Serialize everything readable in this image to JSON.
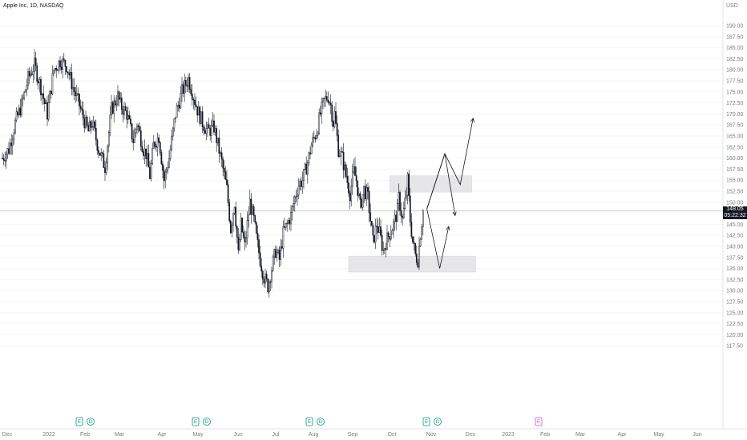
{
  "header": {
    "title": "Apple Inc, 1D, NASDAQ",
    "currency": "USD"
  },
  "price_tag": {
    "price": "148.05",
    "countdown": "05:22:32"
  },
  "colors": {
    "candle": "#131722",
    "zone": "#e6e6e8",
    "grid": "#f0f3fa",
    "axis_text": "#787b86",
    "price_line": "#c8c9cc"
  },
  "chart_data": {
    "type": "candlestick",
    "title": "Apple Inc, 1D, NASDAQ",
    "ylim": [
      117.5,
      192.5
    ],
    "y_ticks": [
      "190.00",
      "187.50",
      "185.00",
      "182.50",
      "180.00",
      "177.50",
      "175.00",
      "172.50",
      "170.00",
      "167.50",
      "165.00",
      "162.50",
      "160.00",
      "157.50",
      "155.00",
      "152.50",
      "150.00",
      "147.50",
      "145.00",
      "142.50",
      "140.00",
      "137.50",
      "135.00",
      "132.50",
      "130.00",
      "127.50",
      "125.00",
      "122.50",
      "120.00",
      "117.50"
    ],
    "x_ticks": [
      "Dec",
      "2022",
      "Feb",
      "Mar",
      "Apr",
      "May",
      "Jun",
      "Jul",
      "Aug",
      "Sep",
      "Oct",
      "Nov",
      "Dec",
      "2023",
      "Feb",
      "Mar",
      "Apr",
      "May",
      "Jun"
    ],
    "path_anchors": [
      [
        0,
        160
      ],
      [
        5,
        162
      ],
      [
        10,
        168
      ],
      [
        15,
        172
      ],
      [
        20,
        178
      ],
      [
        25,
        181
      ],
      [
        30,
        176
      ],
      [
        35,
        170
      ],
      [
        40,
        180
      ],
      [
        45,
        182
      ],
      [
        50,
        181
      ],
      [
        55,
        176
      ],
      [
        60,
        172
      ],
      [
        62,
        170
      ],
      [
        67,
        166
      ],
      [
        70,
        168
      ],
      [
        75,
        162
      ],
      [
        80,
        158
      ],
      [
        85,
        171
      ],
      [
        90,
        174
      ],
      [
        92,
        172
      ],
      [
        97,
        170
      ],
      [
        102,
        164
      ],
      [
        105,
        168
      ],
      [
        110,
        162
      ],
      [
        112,
        161
      ],
      [
        115,
        156
      ],
      [
        118,
        163
      ],
      [
        122,
        165
      ],
      [
        126,
        155
      ],
      [
        130,
        160
      ],
      [
        135,
        170
      ],
      [
        140,
        175
      ],
      [
        145,
        178
      ],
      [
        147,
        176
      ],
      [
        152,
        171
      ],
      [
        156,
        168
      ],
      [
        160,
        166
      ],
      [
        165,
        167
      ],
      [
        168,
        163
      ],
      [
        171,
        159
      ],
      [
        175,
        153
      ],
      [
        178,
        144
      ],
      [
        181,
        150
      ],
      [
        184,
        138
      ],
      [
        186,
        145
      ],
      [
        189,
        140
      ],
      [
        193,
        150
      ],
      [
        196,
        146
      ],
      [
        198,
        142
      ],
      [
        201,
        137
      ],
      [
        204,
        133
      ],
      [
        207,
        131
      ],
      [
        210,
        135
      ],
      [
        213,
        139
      ],
      [
        216,
        137
      ],
      [
        219,
        143
      ],
      [
        222,
        145
      ],
      [
        225,
        147
      ],
      [
        228,
        151
      ],
      [
        231,
        154
      ],
      [
        234,
        155
      ],
      [
        238,
        159
      ],
      [
        241,
        163
      ],
      [
        245,
        166
      ],
      [
        248,
        170
      ],
      [
        251,
        173
      ],
      [
        254,
        174
      ],
      [
        256,
        172
      ],
      [
        258,
        168
      ],
      [
        259,
        170
      ],
      [
        262,
        162
      ],
      [
        265,
        160
      ],
      [
        268,
        156
      ],
      [
        271,
        152
      ],
      [
        274,
        157
      ],
      [
        276,
        155
      ],
      [
        279,
        149
      ],
      [
        282,
        153
      ],
      [
        285,
        151
      ],
      [
        287,
        146
      ],
      [
        289,
        141
      ],
      [
        292,
        145
      ],
      [
        294,
        143
      ],
      [
        297,
        139
      ],
      [
        299,
        141
      ],
      [
        302,
        143
      ],
      [
        305,
        145
      ],
      [
        308,
        148
      ],
      [
        309,
        151
      ],
      [
        312,
        146
      ],
      [
        315,
        152
      ],
      [
        316,
        155
      ],
      [
        318,
        146
      ],
      [
        320,
        141
      ],
      [
        322,
        138
      ],
      [
        324,
        137
      ],
      [
        326,
        143
      ],
      [
        328,
        148
      ]
    ],
    "last_price": 148.05,
    "zones": [
      {
        "start": 302,
        "end": 366,
        "top": 156.0,
        "bottom": 152.3
      },
      {
        "start": 270,
        "end": 369,
        "top": 137.8,
        "bottom": 134.2
      }
    ],
    "projections": [
      {
        "points": [
          [
            331,
            148.5
          ],
          [
            345,
            161
          ],
          [
            357,
            154
          ],
          [
            367,
            169
          ]
        ],
        "arrow": true
      },
      {
        "points": [
          [
            331,
            148.5
          ],
          [
            345,
            161
          ],
          [
            353,
            147
          ]
        ],
        "arrow": true
      },
      {
        "points": [
          [
            331,
            148.5
          ],
          [
            341,
            135
          ],
          [
            348,
            144.5
          ]
        ],
        "arrow": true
      }
    ],
    "events": [
      {
        "label": "E",
        "kind": "earnings",
        "color": "#089981"
      },
      {
        "label": "D",
        "kind": "dividend",
        "color": "#089981"
      },
      {
        "label": "E",
        "kind": "earnings",
        "color": "#089981"
      },
      {
        "label": "D",
        "kind": "dividend",
        "color": "#089981"
      },
      {
        "label": "E",
        "kind": "earnings",
        "color": "#089981"
      },
      {
        "label": "D",
        "kind": "dividend",
        "color": "#089981"
      },
      {
        "label": "E",
        "kind": "earnings",
        "color": "#089981"
      },
      {
        "label": "D",
        "kind": "dividend",
        "color": "#089981"
      },
      {
        "label": "E",
        "kind": "earnings",
        "color": "#cc4ee0"
      }
    ]
  }
}
